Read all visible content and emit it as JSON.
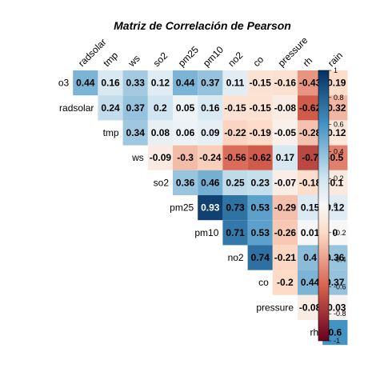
{
  "chart_data": {
    "type": "heatmap",
    "title": "Matriz de Correlación de Pearson",
    "variables": [
      "o3",
      "radsolar",
      "tmp",
      "ws",
      "so2",
      "pm25",
      "pm10",
      "no2",
      "co",
      "pressure",
      "rh",
      "rain"
    ],
    "matrix_upper": [
      [
        0.44,
        0.16,
        0.33,
        0.12,
        0.44,
        0.37,
        0.11,
        -0.15,
        -0.16,
        -0.43,
        -0.19
      ],
      [
        0.24,
        0.37,
        0.2,
        0.05,
        0.16,
        -0.15,
        -0.15,
        -0.08,
        -0.62,
        -0.32
      ],
      [
        0.34,
        0.08,
        0.06,
        0.09,
        -0.22,
        -0.19,
        -0.05,
        -0.28,
        -0.12
      ],
      [
        -0.09,
        -0.3,
        -0.24,
        -0.56,
        -0.62,
        0.17,
        -0.7,
        -0.5
      ],
      [
        0.36,
        0.46,
        0.25,
        0.23,
        -0.07,
        -0.18,
        -0.1
      ],
      [
        0.93,
        0.73,
        0.53,
        -0.29,
        0.15,
        0.12
      ],
      [
        0.71,
        0.53,
        -0.26,
        0.01,
        0
      ],
      [
        0.74,
        -0.21,
        0.4,
        0.36
      ],
      [
        -0.2,
        0.44,
        0.37
      ],
      [
        -0.08,
        -0.03
      ],
      [
        0.6
      ]
    ],
    "colorbar": {
      "ticks": [
        "1",
        "0.8",
        "0.6",
        "0.4",
        "0.2",
        "0",
        "-0.2",
        "-0.4",
        "-0.6",
        "-0.8",
        "-1"
      ],
      "range": [
        -1,
        1
      ]
    },
    "palette": {
      "neg_strong": "#67001F",
      "neg_mid": "#D6604D",
      "neg_light": "#FDDBC7",
      "zero": "#F7F7F7",
      "pos_light": "#D1E5F0",
      "pos_mid": "#4393C3",
      "pos_strong": "#053061"
    }
  }
}
